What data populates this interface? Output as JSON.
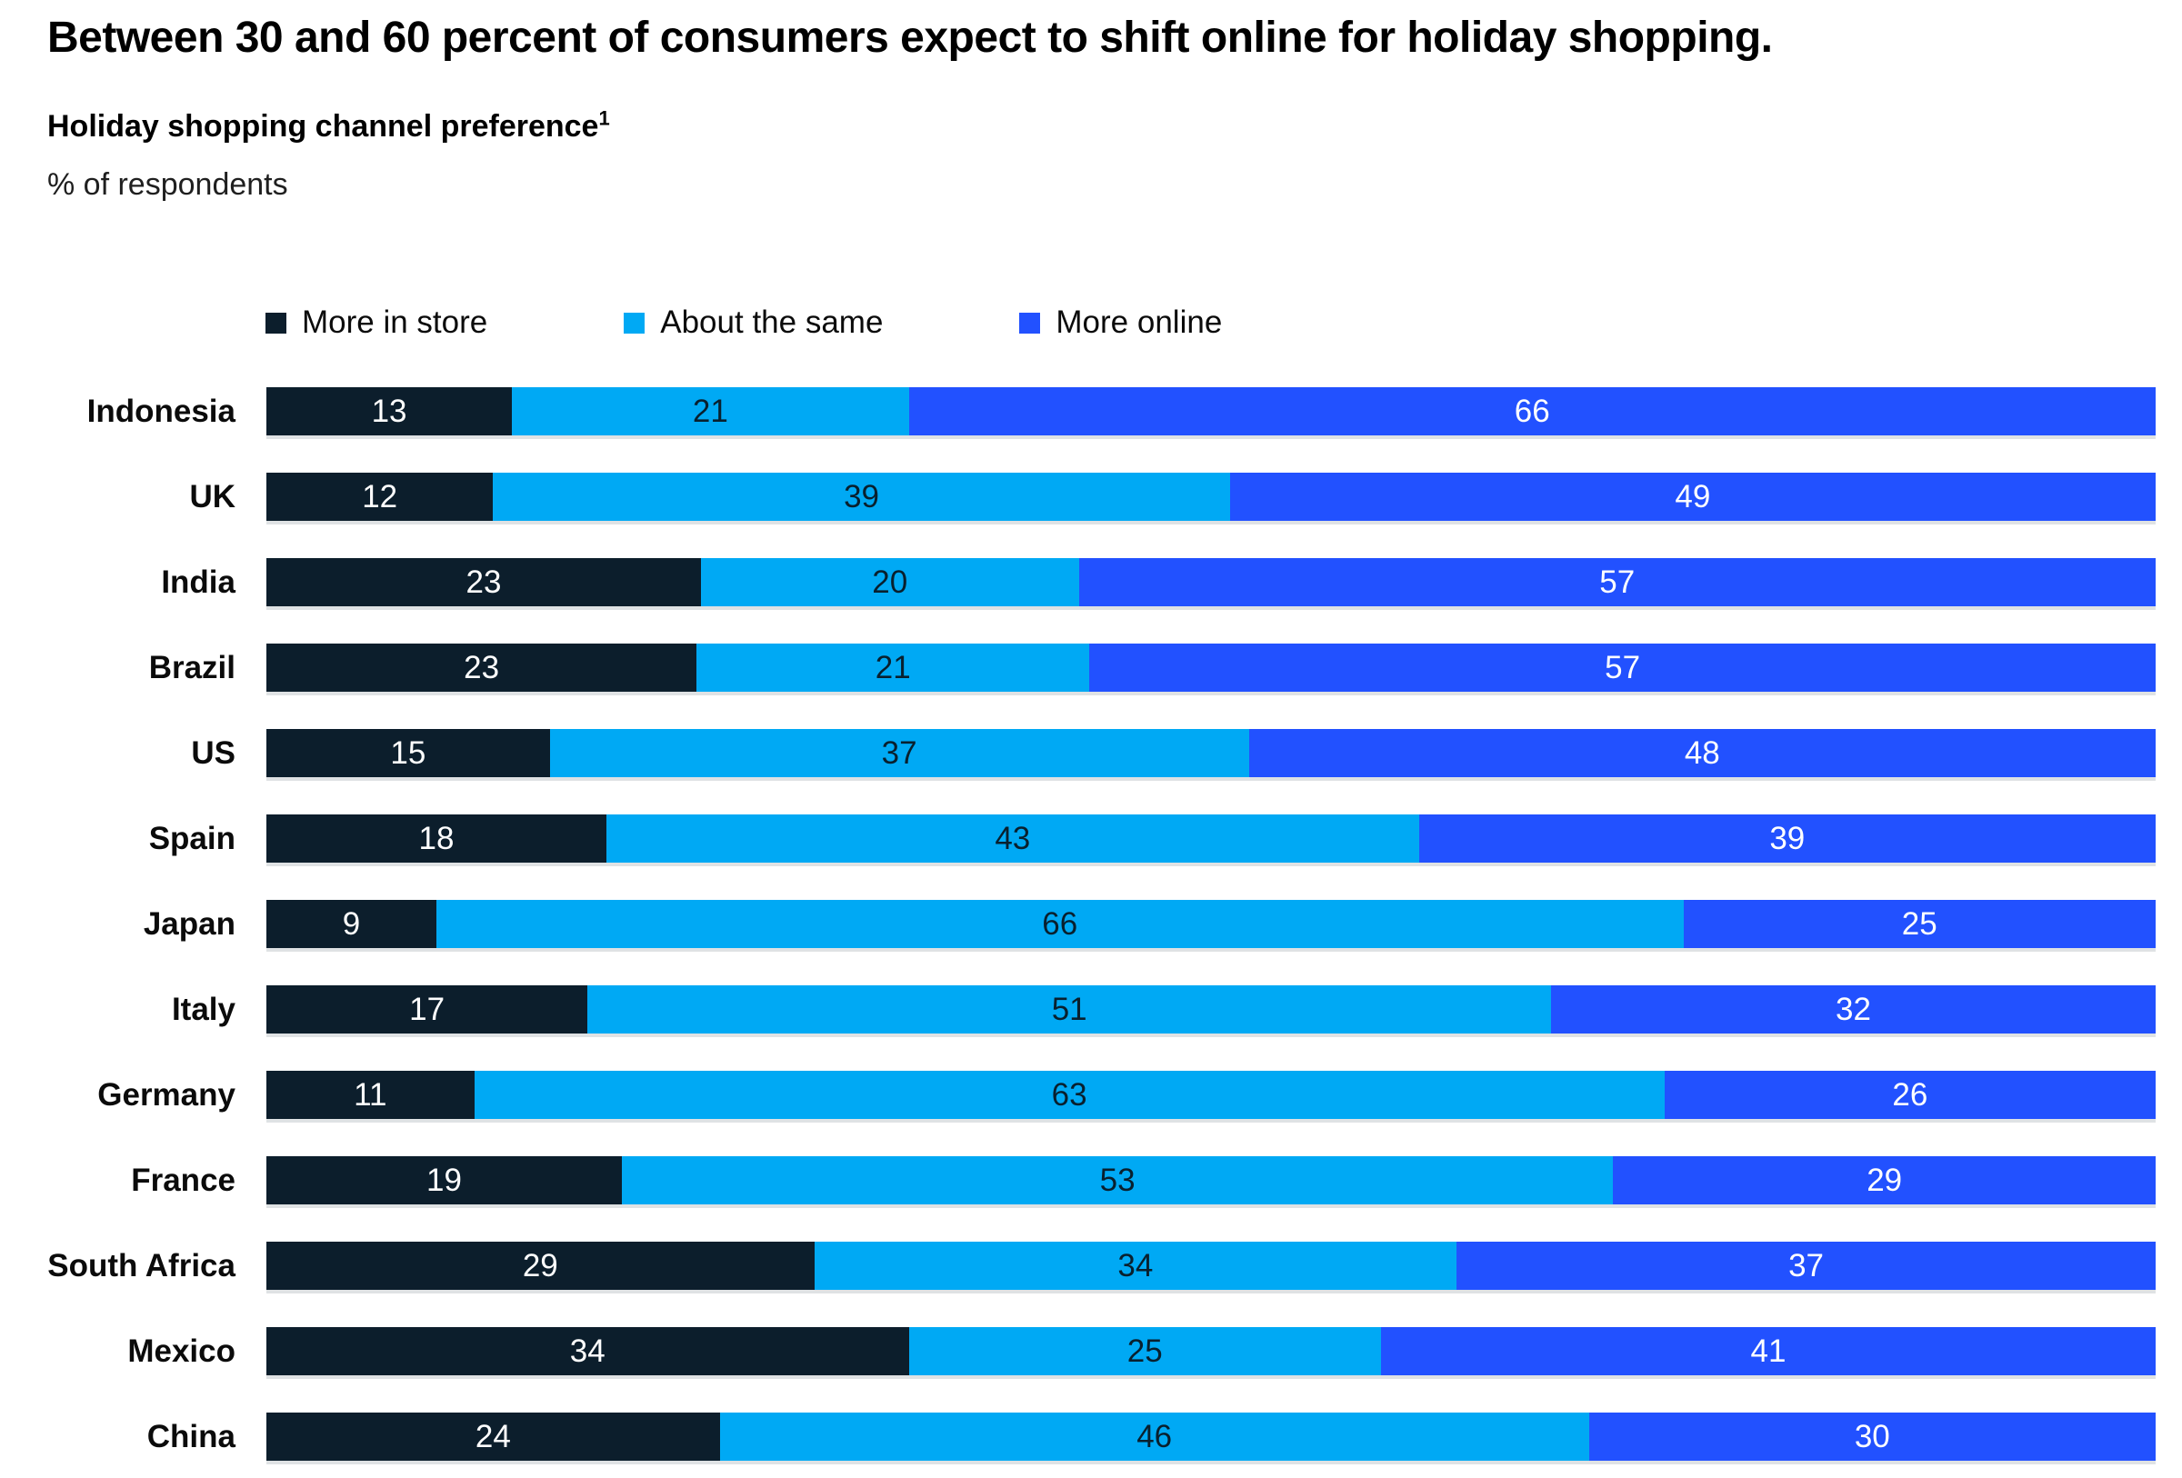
{
  "header": {
    "title": "Between 30 and 60 percent of consumers expect to shift online for holiday shopping.",
    "subtitle": "Holiday shopping channel preference",
    "footnote_marker": "1",
    "unit_label": "% of respondents"
  },
  "chart_data": {
    "type": "bar",
    "orientation": "horizontal",
    "stacked": true,
    "title": "Holiday shopping channel preference",
    "xlabel": "",
    "ylabel": "",
    "unit": "% of respondents",
    "xlim": [
      0,
      100
    ],
    "grid": false,
    "legend_position": "top",
    "value_labels": "inside-center",
    "categories": [
      "Indonesia",
      "UK",
      "India",
      "Brazil",
      "US",
      "Spain",
      "Japan",
      "Italy",
      "Germany",
      "France",
      "South Africa",
      "Mexico",
      "China"
    ],
    "series": [
      {
        "name": "More in store",
        "color": "#0c1e2c",
        "values": [
          13,
          12,
          23,
          23,
          15,
          18,
          9,
          17,
          11,
          19,
          29,
          34,
          24
        ]
      },
      {
        "name": "About the same",
        "color": "#00a9f4",
        "values": [
          21,
          39,
          20,
          21,
          37,
          43,
          66,
          51,
          63,
          53,
          34,
          25,
          46
        ]
      },
      {
        "name": "More online",
        "color": "#2251ff",
        "values": [
          66,
          49,
          57,
          57,
          48,
          39,
          25,
          32,
          26,
          29,
          37,
          41,
          30
        ]
      }
    ]
  }
}
